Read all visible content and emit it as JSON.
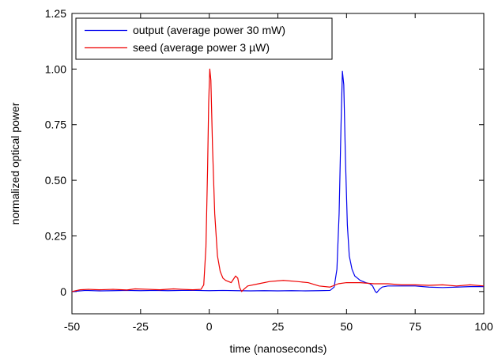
{
  "chart_data": {
    "type": "line",
    "title": "",
    "xlabel": "time (nanoseconds)",
    "ylabel": "normalized optical power",
    "xlim": [
      -50,
      100
    ],
    "ylim": [
      -0.1,
      1.25
    ],
    "x_ticks": [
      -50,
      -25,
      0,
      25,
      50,
      75,
      100
    ],
    "x_tick_labels": [
      "-50",
      "-25",
      "0",
      "25",
      "50",
      "75",
      "100"
    ],
    "y_ticks": [
      0,
      0.25,
      0.5,
      0.75,
      1.0,
      1.25
    ],
    "y_tick_labels": [
      "0",
      "0.25",
      "0.50",
      "0.75",
      "1.00",
      "1.25"
    ],
    "grid": false,
    "legend_position": "top-left",
    "series": [
      {
        "name": "output (average power 30 mW)",
        "color": "#0000ee",
        "points": [
          [
            -50,
            0.0
          ],
          [
            -45,
            0.005
          ],
          [
            -40,
            0.003
          ],
          [
            -35,
            0.004
          ],
          [
            -30,
            0.005
          ],
          [
            -25,
            0.004
          ],
          [
            -20,
            0.005
          ],
          [
            -15,
            0.004
          ],
          [
            -10,
            0.005
          ],
          [
            -5,
            0.005
          ],
          [
            0,
            0.004
          ],
          [
            5,
            0.005
          ],
          [
            10,
            0.004
          ],
          [
            15,
            0.003
          ],
          [
            20,
            0.004
          ],
          [
            25,
            0.003
          ],
          [
            30,
            0.004
          ],
          [
            35,
            0.003
          ],
          [
            40,
            0.004
          ],
          [
            44,
            0.005
          ],
          [
            45.5,
            0.02
          ],
          [
            46.5,
            0.1
          ],
          [
            47.3,
            0.35
          ],
          [
            48,
            0.75
          ],
          [
            48.5,
            0.99
          ],
          [
            49,
            0.93
          ],
          [
            49.6,
            0.6
          ],
          [
            50.3,
            0.3
          ],
          [
            51,
            0.16
          ],
          [
            52,
            0.1
          ],
          [
            53,
            0.07
          ],
          [
            54,
            0.06
          ],
          [
            55,
            0.05
          ],
          [
            57,
            0.04
          ],
          [
            58.5,
            0.035
          ],
          [
            59.5,
            0.025
          ],
          [
            60.5,
            0.0
          ],
          [
            61,
            -0.005
          ],
          [
            62,
            0.01
          ],
          [
            63,
            0.02
          ],
          [
            65,
            0.025
          ],
          [
            70,
            0.025
          ],
          [
            75,
            0.025
          ],
          [
            80,
            0.02
          ],
          [
            85,
            0.018
          ],
          [
            90,
            0.02
          ],
          [
            95,
            0.022
          ],
          [
            100,
            0.022
          ]
        ]
      },
      {
        "name": "seed (average power 3 µW)",
        "color": "#ee0000",
        "points": [
          [
            -50,
            0.0
          ],
          [
            -47,
            0.008
          ],
          [
            -44,
            0.01
          ],
          [
            -40,
            0.008
          ],
          [
            -35,
            0.01
          ],
          [
            -30,
            0.007
          ],
          [
            -27,
            0.012
          ],
          [
            -22,
            0.01
          ],
          [
            -18,
            0.008
          ],
          [
            -13,
            0.012
          ],
          [
            -10,
            0.01
          ],
          [
            -6,
            0.008
          ],
          [
            -3,
            0.01
          ],
          [
            -2,
            0.03
          ],
          [
            -1.2,
            0.2
          ],
          [
            -0.6,
            0.55
          ],
          [
            -0.2,
            0.85
          ],
          [
            0.2,
            1.0
          ],
          [
            0.6,
            0.95
          ],
          [
            1.2,
            0.65
          ],
          [
            2,
            0.35
          ],
          [
            3,
            0.16
          ],
          [
            4,
            0.09
          ],
          [
            5,
            0.06
          ],
          [
            6,
            0.05
          ],
          [
            7,
            0.045
          ],
          [
            8,
            0.04
          ],
          [
            8.8,
            0.055
          ],
          [
            9.6,
            0.07
          ],
          [
            10.4,
            0.06
          ],
          [
            11,
            0.02
          ],
          [
            11.8,
            0.0
          ],
          [
            12.6,
            0.01
          ],
          [
            14,
            0.025
          ],
          [
            18,
            0.035
          ],
          [
            22,
            0.045
          ],
          [
            27,
            0.05
          ],
          [
            32,
            0.045
          ],
          [
            36,
            0.04
          ],
          [
            40,
            0.025
          ],
          [
            44,
            0.02
          ],
          [
            47,
            0.035
          ],
          [
            50,
            0.04
          ],
          [
            55,
            0.04
          ],
          [
            60,
            0.035
          ],
          [
            65,
            0.035
          ],
          [
            70,
            0.03
          ],
          [
            75,
            0.03
          ],
          [
            80,
            0.028
          ],
          [
            85,
            0.03
          ],
          [
            90,
            0.025
          ],
          [
            95,
            0.03
          ],
          [
            100,
            0.025
          ]
        ]
      }
    ]
  }
}
